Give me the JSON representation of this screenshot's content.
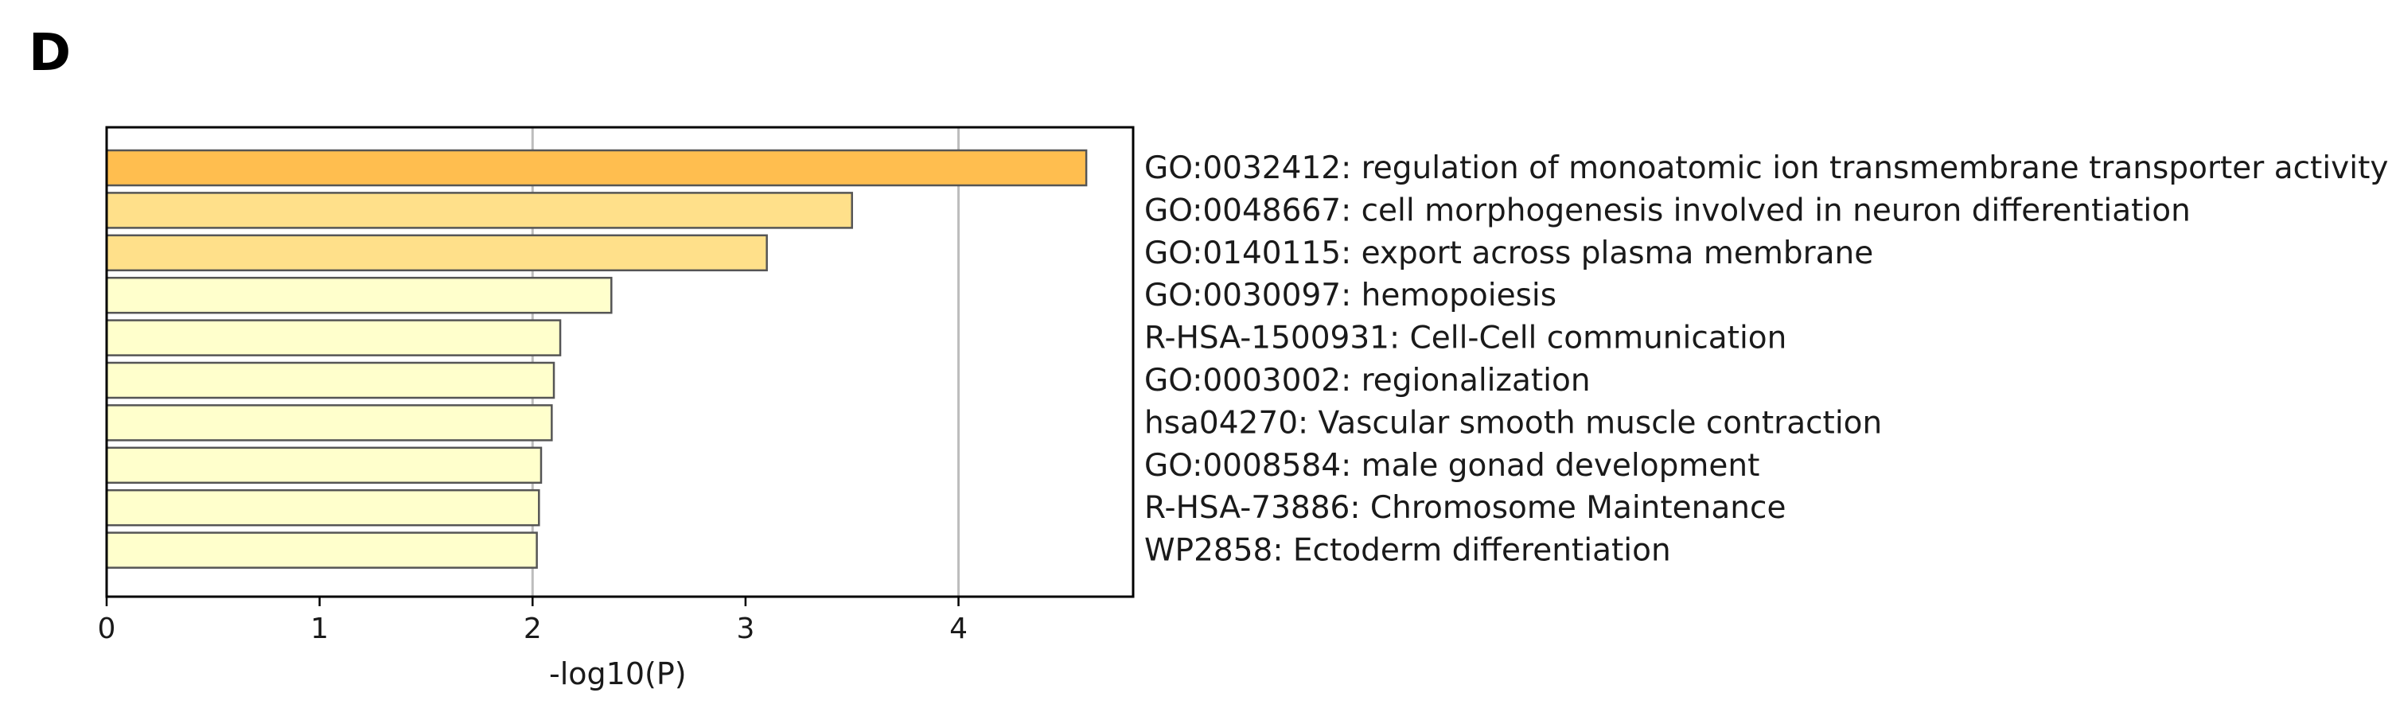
{
  "panel_label": "D",
  "chart_data": {
    "type": "bar",
    "orientation": "horizontal",
    "categories": [
      "GO:0032412: regulation of monoatomic ion transmembrane transporter activity",
      "GO:0048667: cell morphogenesis involved in neuron differentiation",
      "GO:0140115: export across plasma membrane",
      "GO:0030097: hemopoiesis",
      "R-HSA-1500931: Cell-Cell communication",
      "GO:0003002: regionalization",
      "hsa04270: Vascular smooth muscle contraction",
      "GO:0008584: male gonad development",
      "R-HSA-73886: Chromosome Maintenance",
      "WP2858: Ectoderm differentiation"
    ],
    "values": [
      4.6,
      3.5,
      3.1,
      2.37,
      2.13,
      2.1,
      2.09,
      2.04,
      2.03,
      2.02
    ],
    "colors": [
      "#FFBE4F",
      "#FFE08A",
      "#FFE08A",
      "#FFFFCC",
      "#FFFFCC",
      "#FFFFCC",
      "#FFFFCC",
      "#FFFFCC",
      "#FFFFCC",
      "#FFFFCC"
    ],
    "bar_edge_color": "#555555",
    "xlabel": "-log10(P)",
    "ylabel": "",
    "xlim": [
      0,
      4.82
    ],
    "xticks": [
      "0",
      "1",
      "2",
      "3",
      "4"
    ],
    "gridlines_x": [
      2,
      4
    ],
    "grid_color": "#bdbdbd",
    "legend": "none"
  }
}
